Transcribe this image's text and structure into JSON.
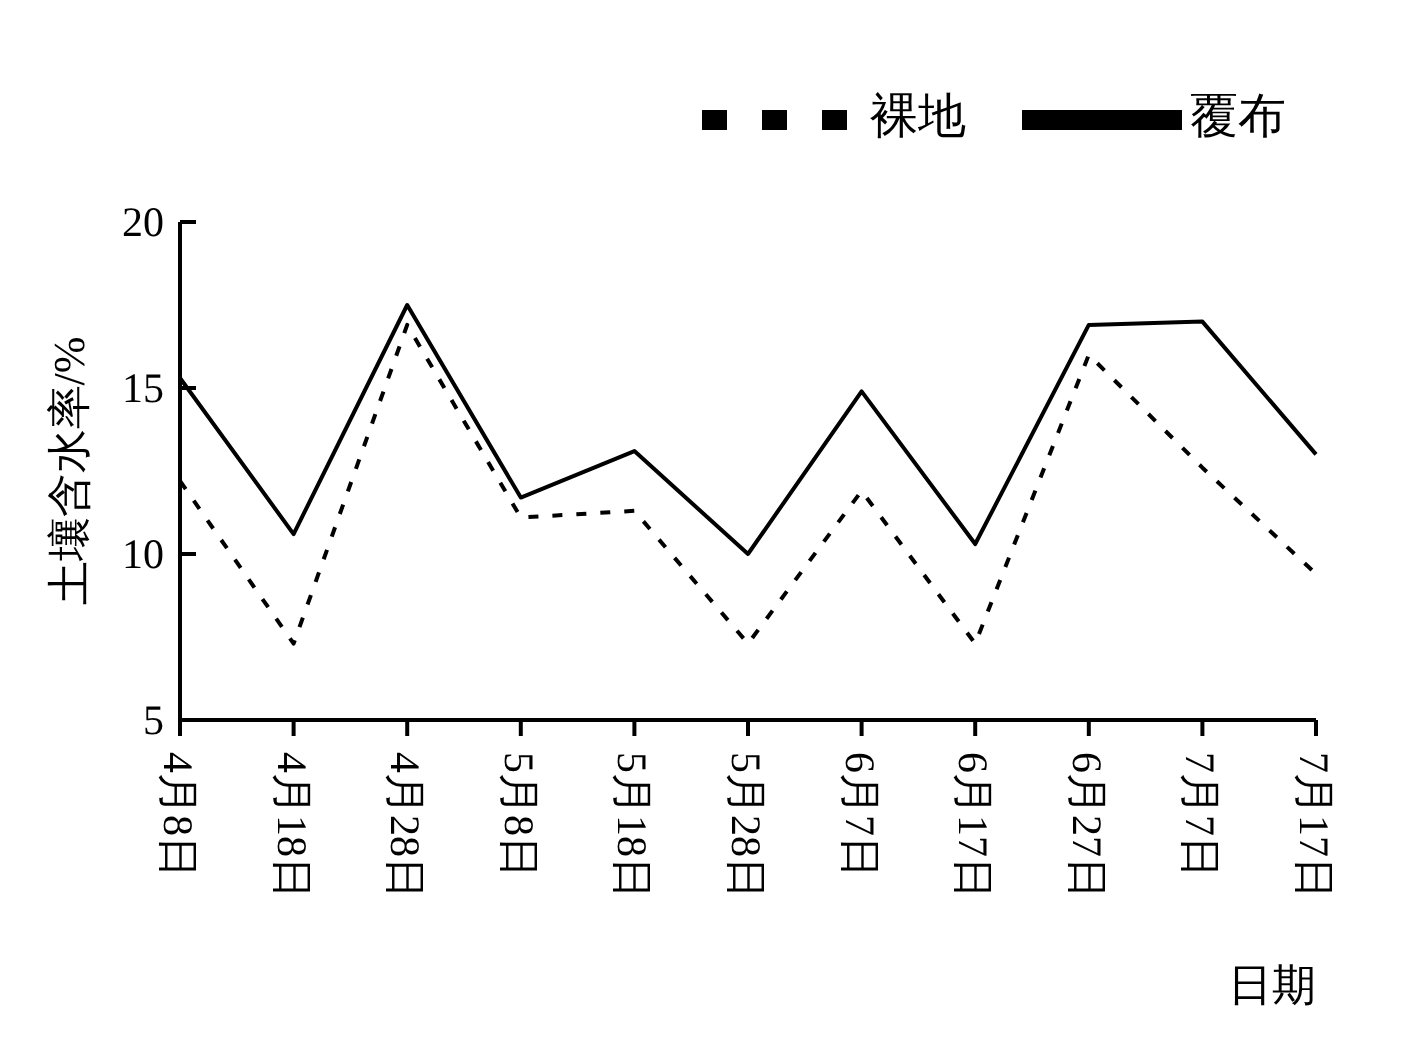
{
  "chart_data": {
    "type": "line",
    "xlabel": "日期",
    "ylabel": "土壤含水率/%",
    "categories": [
      "4月8日",
      "4月18日",
      "4月28日",
      "5月8日",
      "5月18日",
      "5月28日",
      "6月7日",
      "6月17日",
      "6月27日",
      "7月7日",
      "7月17日"
    ],
    "series": [
      {
        "name": "裸地",
        "color": "#000000",
        "line_style": "dashed",
        "values": [
          12.2,
          7.3,
          16.9,
          11.1,
          11.3,
          7.3,
          11.9,
          7.3,
          16.0,
          12.6,
          9.4
        ]
      },
      {
        "name": "覆布",
        "color": "#000000",
        "line_style": "solid",
        "values": [
          15.3,
          10.6,
          17.5,
          11.7,
          13.1,
          10.0,
          14.9,
          10.3,
          16.9,
          17.0,
          13.0
        ]
      }
    ],
    "ylim": [
      5,
      20
    ],
    "yticks": [
      5,
      10,
      15,
      20
    ],
    "grid": false,
    "legend": "top right",
    "marker": "none"
  }
}
